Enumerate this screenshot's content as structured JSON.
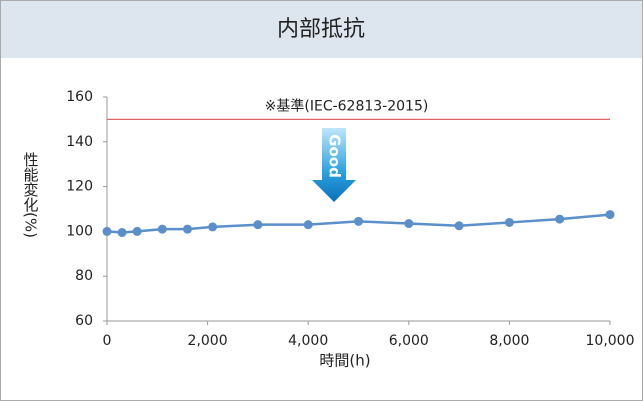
{
  "chart_data": {
    "type": "line",
    "title": "内部抵抗",
    "xlabel": "時間(h)",
    "ylabel": "性能変化(%)",
    "annotation": "Good",
    "reference_line": {
      "value": 150,
      "label": "※基準(IEC-62813-2015)",
      "color": "#e06666"
    },
    "x": [
      0,
      300,
      600,
      1100,
      1600,
      2100,
      3000,
      4000,
      5000,
      6000,
      7000,
      8000,
      9000,
      10000
    ],
    "series": [
      {
        "name": "内部抵抗",
        "color": "#5b8fc9",
        "values": [
          100,
          99.5,
          100,
          101,
          101,
          102,
          103,
          103,
          104.5,
          103.5,
          102.5,
          104,
          105.5,
          107.5
        ]
      }
    ],
    "xlim": [
      0,
      10000
    ],
    "xticks": [
      0,
      {
        "value": 2000,
        "label": "2,000"
      },
      {
        "value": 4000,
        "label": "4,000"
      },
      {
        "value": 6000,
        "label": "6,000"
      },
      {
        "value": 8000,
        "label": "8,000"
      },
      {
        "value": 10000,
        "label": "10,000"
      }
    ],
    "ylim": [
      60,
      160
    ],
    "yticks": [
      60,
      80,
      100,
      120,
      140,
      160
    ],
    "grid": false
  }
}
